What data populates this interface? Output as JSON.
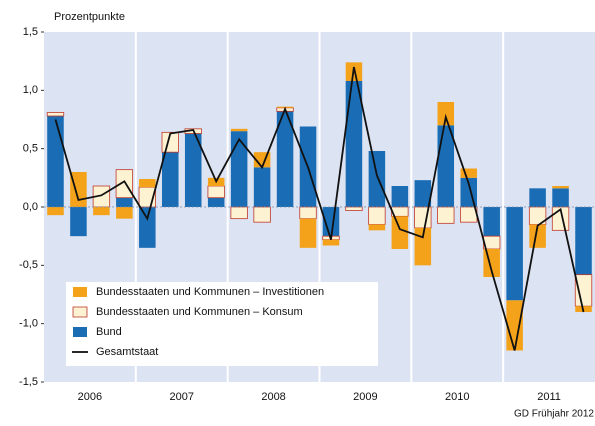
{
  "chart_data": {
    "type": "bar",
    "stacked": true,
    "y_label": "Prozentpunkte",
    "source": "GD Frühjahr 2012",
    "categories": [
      null,
      null,
      null,
      null,
      null,
      null,
      null,
      null,
      null,
      null,
      null,
      null,
      null,
      null,
      null,
      null,
      null,
      null,
      null,
      null,
      null,
      null,
      null,
      null
    ],
    "groups": [
      "2006",
      "2007",
      "2008",
      "2009",
      "2010",
      "2011"
    ],
    "ylim": [
      -1.5,
      1.5
    ],
    "yticks": [
      {
        "value": -1.5,
        "label": "-1,5"
      },
      {
        "value": -1.0,
        "label": "-1,0"
      },
      {
        "value": -0.5,
        "label": "-0,5"
      },
      {
        "value": 0,
        "label": "0,0"
      },
      {
        "value": 0.5,
        "label": "0,5"
      },
      {
        "value": 1.0,
        "label": "1,0"
      },
      {
        "value": 1.5,
        "label": "1,5"
      }
    ],
    "series": [
      {
        "name": "Bund",
        "color": "#1a6db5",
        "values": [
          0.78,
          -0.25,
          0,
          0.08,
          -0.35,
          0.47,
          0.63,
          0.08,
          0.65,
          0.34,
          0.82,
          0.69,
          -0.25,
          1.08,
          0.48,
          0.18,
          0.23,
          0.7,
          0.25,
          -0.25,
          -0.8,
          0.16,
          0.16,
          -0.58
        ]
      },
      {
        "name": "Bundesstaaten und Kommunen – Konsum",
        "color": "#fdf2d2",
        "edge": "#c0392b",
        "values": [
          0.03,
          0,
          0.18,
          0.24,
          0.17,
          0.17,
          0.04,
          0.1,
          -0.1,
          -0.13,
          0.03,
          -0.1,
          -0.03,
          -0.03,
          -0.15,
          -0.08,
          -0.18,
          -0.14,
          -0.13,
          -0.11,
          0,
          -0.15,
          -0.2,
          -0.27
        ]
      },
      {
        "name": "Bundesstaaten und Kommunen – Investitionen",
        "color": "#f5a21b",
        "values": [
          -0.07,
          0.3,
          -0.07,
          -0.1,
          0.07,
          0,
          0,
          0.07,
          0.02,
          0.13,
          0.01,
          -0.25,
          -0.05,
          0.16,
          -0.05,
          -0.28,
          -0.32,
          0.2,
          0.08,
          -0.24,
          -0.43,
          -0.2,
          0.02,
          -0.05
        ]
      },
      {
        "name": "Gesamtstaat",
        "type": "line",
        "color": "#111111",
        "values": [
          0.75,
          0.06,
          0.1,
          0.22,
          -0.1,
          0.63,
          0.66,
          0.22,
          0.58,
          0.34,
          0.84,
          0.34,
          -0.28,
          1.2,
          0.27,
          -0.19,
          -0.26,
          0.77,
          0.2,
          -0.55,
          -1.23,
          -0.16,
          -0.02,
          -0.9
        ]
      }
    ],
    "legend_order": [
      2,
      1,
      0,
      3
    ]
  }
}
